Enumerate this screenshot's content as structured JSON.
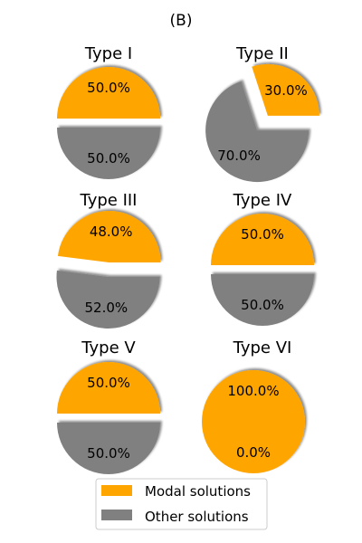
{
  "figure": {
    "title": "(B)"
  },
  "chart_data": {
    "type": "pie",
    "title": "(B)",
    "series_names": [
      "Modal solutions",
      "Other solutions"
    ],
    "colors": [
      "#FFA500",
      "#808080"
    ],
    "legend": {
      "placement": "bottom-center",
      "entries": [
        "Modal solutions",
        "Other solutions"
      ]
    },
    "shadow": true,
    "explode": true,
    "pies": [
      {
        "title": "Type I",
        "values": [
          50.0,
          50.0
        ],
        "labels": [
          "50.0%",
          "50.0%"
        ]
      },
      {
        "title": "Type II",
        "values": [
          30.0,
          70.0
        ],
        "labels": [
          "30.0%",
          "70.0%"
        ]
      },
      {
        "title": "Type III",
        "values": [
          48.0,
          52.0
        ],
        "labels": [
          "48.0%",
          "52.0%"
        ]
      },
      {
        "title": "Type IV",
        "values": [
          50.0,
          50.0
        ],
        "labels": [
          "50.0%",
          "50.0%"
        ]
      },
      {
        "title": "Type V",
        "values": [
          50.0,
          50.0
        ],
        "labels": [
          "50.0%",
          "50.0%"
        ]
      },
      {
        "title": "Type VI",
        "values": [
          100.0,
          0.0
        ],
        "labels": [
          "100.0%",
          "0.0%"
        ]
      }
    ]
  }
}
